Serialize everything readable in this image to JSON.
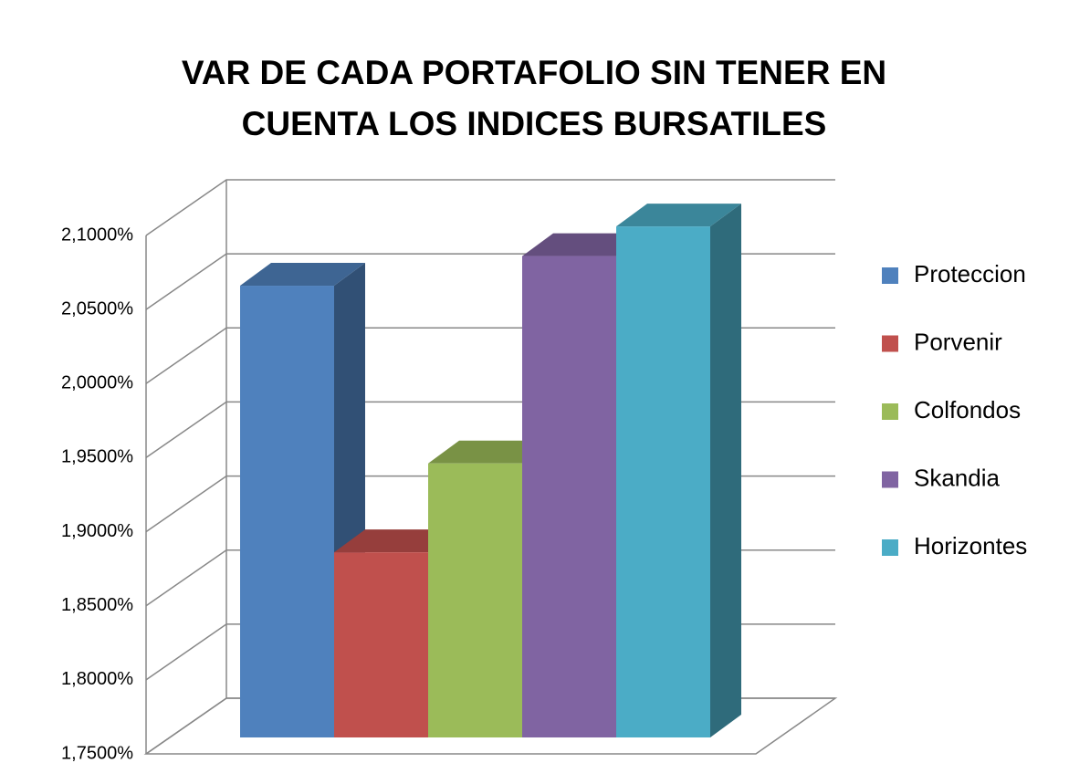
{
  "chart_data": {
    "type": "bar3d",
    "title": "VAR DE CADA PORTAFOLIO SIN TENER EN CUENTA LOS INDICES BURSATILES",
    "categories": [
      null
    ],
    "series": [
      {
        "name": "Proteccion",
        "color": "#4f81bd",
        "values": [
          2.055
        ]
      },
      {
        "name": "Porvenir",
        "color": "#c0504d",
        "values": [
          1.875
        ]
      },
      {
        "name": "Colfondos",
        "color": "#9bbb59",
        "values": [
          1.935
        ]
      },
      {
        "name": "Skandia",
        "color": "#8064a2",
        "values": [
          2.075
        ]
      },
      {
        "name": "Horizontes",
        "color": "#4bacc6",
        "values": [
          2.095
        ]
      }
    ],
    "ylim": [
      1.75,
      2.1
    ],
    "yticks": [
      {
        "value": 1.75,
        "label": "1,7500%"
      },
      {
        "value": 1.8,
        "label": "1,8000%"
      },
      {
        "value": 1.85,
        "label": "1,8500%"
      },
      {
        "value": 1.9,
        "label": "1,9000%"
      },
      {
        "value": 1.95,
        "label": "1,9500%"
      },
      {
        "value": 2.0,
        "label": "2,0000%"
      },
      {
        "value": 2.05,
        "label": "2,0500%"
      },
      {
        "value": 2.1,
        "label": "2,1000%"
      }
    ],
    "grid": true,
    "legend": "right"
  }
}
